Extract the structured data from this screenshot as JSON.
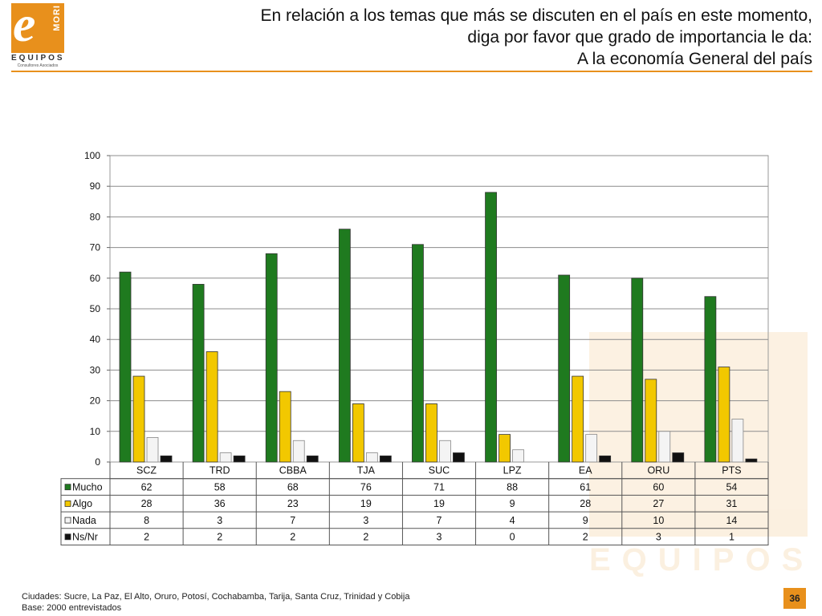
{
  "logo": {
    "mark": "e",
    "brand": "MORI",
    "name": "EQUIPOS",
    "subtitle": "Consultores Asociados"
  },
  "title": {
    "line1": "En relación a los temas que más se discuten en el país en este momento,",
    "line2": "diga por favor que grado de importancia le da:",
    "line3": "A la economía General del país"
  },
  "watermark": {
    "name": "EQUIPOS"
  },
  "footer": {
    "line1": "Ciudades: Sucre, La Paz, El Alto, Oruro, Potosí, Cochabamba, Tarija, Santa Cruz, Trinidad y Cobija",
    "line2": "Base: 2000 entrevistados"
  },
  "page_number": "36",
  "colors": {
    "accent": "#e8901c",
    "mucho": "#1f7a1f",
    "algo": "#f2c800",
    "nada": "#f4f4f4",
    "nsnr": "#111111"
  },
  "chart_data": {
    "type": "bar",
    "categories": [
      "SCZ",
      "TRD",
      "CBBA",
      "TJA",
      "SUC",
      "LPZ",
      "EA",
      "ORU",
      "PTS"
    ],
    "series": [
      {
        "name": "Mucho",
        "values": [
          62,
          58,
          68,
          76,
          71,
          88,
          61,
          60,
          54
        ]
      },
      {
        "name": "Algo",
        "values": [
          28,
          36,
          23,
          19,
          19,
          9,
          28,
          27,
          31
        ]
      },
      {
        "name": "Nada",
        "values": [
          8,
          3,
          7,
          3,
          7,
          4,
          9,
          10,
          14
        ]
      },
      {
        "name": "Ns/Nr",
        "values": [
          2,
          2,
          2,
          2,
          3,
          0,
          2,
          3,
          1
        ]
      }
    ],
    "ylim": [
      0,
      100
    ],
    "yticks": [
      0,
      10,
      20,
      30,
      40,
      50,
      60,
      70,
      80,
      90,
      100
    ],
    "grid": true,
    "legend": "data-table"
  }
}
